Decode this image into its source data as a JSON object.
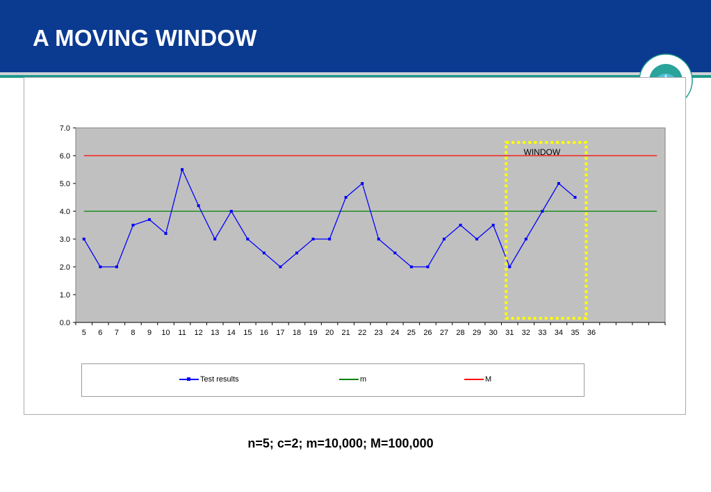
{
  "slide": {
    "title": "A MOVING WINDOW",
    "footer_text": "n=5; c=2; m=10,000; M=100,000",
    "colors": {
      "header": "#0b3a91",
      "accent_rule": "#1f9a8c",
      "plot_bg": "#c0c0c0"
    }
  },
  "chart_data": {
    "type": "line",
    "x": [
      5,
      6,
      7,
      8,
      9,
      10,
      11,
      12,
      13,
      14,
      15,
      16,
      17,
      18,
      19,
      20,
      21,
      22,
      23,
      24,
      25,
      26,
      27,
      28,
      29,
      30,
      31,
      32,
      33,
      34,
      35,
      36
    ],
    "ylim": [
      0,
      7
    ],
    "yticks": [
      "0.0",
      "1.0",
      "2.0",
      "3.0",
      "4.0",
      "5.0",
      "6.0",
      "7.0"
    ],
    "grid": false,
    "legend_position": "bottom",
    "series": [
      {
        "name": "Test results",
        "color": "#0000ff",
        "marker": "square",
        "values": [
          3.0,
          2.0,
          2.0,
          3.5,
          3.7,
          3.2,
          5.5,
          4.2,
          3.0,
          4.0,
          3.0,
          2.5,
          2.0,
          2.5,
          3.0,
          3.0,
          4.5,
          5.0,
          3.0,
          2.5,
          2.0,
          2.0,
          3.0,
          3.5,
          3.0,
          3.5,
          2.0,
          3.0,
          4.0,
          5.0,
          4.5,
          null
        ]
      },
      {
        "name": "m",
        "color": "#008000",
        "constant": 4.0
      },
      {
        "name": "M",
        "color": "#ff0000",
        "constant": 6.0
      }
    ],
    "annotations": [
      {
        "label": "WINDOW",
        "x_from": 31,
        "x_to": 35,
        "color": "#ffff00",
        "style": "dotted-box"
      }
    ]
  }
}
